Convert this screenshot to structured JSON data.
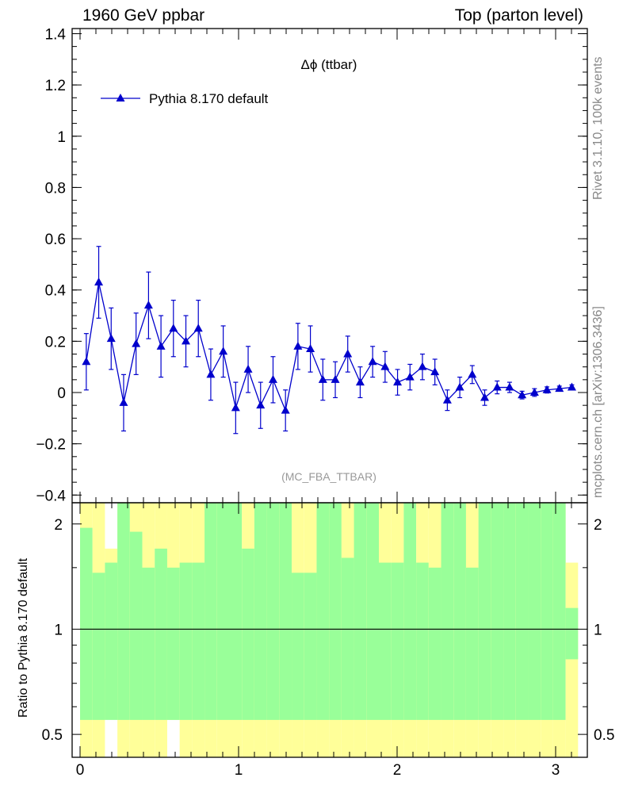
{
  "header": {
    "left": "1960 GeV ppbar",
    "right": "Top (parton level)"
  },
  "side_labels": {
    "rivet": "Rivet 3.1.10,  100k events",
    "mcplots": "mcplots.cern.ch [arXiv:1306.3436]"
  },
  "ratio_ylabel": "Ratio to Pythia 8.170 default",
  "colors": {
    "series": "#0000cc",
    "band_inner": "#99ff99",
    "band_outer": "#ffff99",
    "frame": "#000000",
    "watermark": "#999999"
  },
  "chart_data": [
    {
      "type": "line",
      "title": "Δϕ (ttbar)",
      "watermark": "(MC_FBA_TTBAR)",
      "legend_placement": "top-left",
      "xlim": [
        -0.05,
        3.2
      ],
      "ylim": [
        -0.43,
        1.42
      ],
      "yticks": [
        -0.4,
        -0.2,
        0,
        0.2,
        0.4,
        0.6,
        0.8,
        1,
        1.2,
        1.4
      ],
      "ytick_labels": [
        "−0.4",
        "−0.2",
        "0",
        "0.2",
        "0.4",
        "0.6",
        "0.8",
        "1",
        "1.2",
        "1.4"
      ],
      "series": [
        {
          "name": "Pythia 8.170 default",
          "marker": "triangle-up",
          "x": [
            0.0393,
            0.1178,
            0.1963,
            0.2749,
            0.3534,
            0.432,
            0.5105,
            0.589,
            0.6676,
            0.7461,
            0.8247,
            0.9032,
            0.9817,
            1.0603,
            1.1388,
            1.2174,
            1.2959,
            1.3744,
            1.453,
            1.5315,
            1.6101,
            1.6886,
            1.7671,
            1.8457,
            1.9242,
            2.0028,
            2.0813,
            2.1598,
            2.2384,
            2.3169,
            2.3955,
            2.474,
            2.5525,
            2.6311,
            2.7096,
            2.7882,
            2.8667,
            2.9452,
            3.0238,
            3.1023
          ],
          "y": [
            0.12,
            0.43,
            0.21,
            -0.04,
            0.19,
            0.34,
            0.18,
            0.25,
            0.2,
            0.25,
            0.07,
            0.16,
            -0.06,
            0.09,
            -0.05,
            0.05,
            -0.07,
            0.18,
            0.17,
            0.05,
            0.05,
            0.15,
            0.04,
            0.12,
            0.1,
            0.04,
            0.06,
            0.1,
            0.08,
            -0.03,
            0.02,
            0.07,
            -0.02,
            0.02,
            0.02,
            -0.01,
            0.0,
            0.01,
            0.015,
            0.02
          ],
          "yerr": [
            0.11,
            0.14,
            0.12,
            0.11,
            0.12,
            0.13,
            0.12,
            0.11,
            0.1,
            0.11,
            0.1,
            0.1,
            0.1,
            0.09,
            0.09,
            0.09,
            0.08,
            0.09,
            0.09,
            0.08,
            0.07,
            0.07,
            0.06,
            0.06,
            0.06,
            0.05,
            0.05,
            0.05,
            0.05,
            0.04,
            0.04,
            0.035,
            0.03,
            0.025,
            0.02,
            0.015,
            0.015,
            0.012,
            0.01,
            0.01
          ]
        }
      ]
    },
    {
      "type": "area",
      "xlim": [
        -0.05,
        3.2
      ],
      "ylim": [
        0.43,
        2.3
      ],
      "yscale": "log",
      "yticks": [
        0.5,
        1,
        2
      ],
      "ytick_labels": [
        "0.5",
        "1",
        "2"
      ],
      "xticks": [
        0,
        1,
        2,
        3
      ],
      "xtick_labels": [
        "0",
        "1",
        "2",
        "3"
      ],
      "reference_line": 1,
      "bin_edges": [
        0.0,
        0.0785,
        0.1571,
        0.2356,
        0.3142,
        0.3927,
        0.4712,
        0.5498,
        0.6283,
        0.7069,
        0.7854,
        0.8639,
        0.9425,
        1.021,
        1.0996,
        1.1781,
        1.2566,
        1.3352,
        1.4137,
        1.4923,
        1.5708,
        1.6493,
        1.7279,
        1.8064,
        1.885,
        1.9635,
        2.042,
        2.1206,
        2.1991,
        2.2777,
        2.3562,
        2.4347,
        2.5133,
        2.5918,
        2.6704,
        2.7489,
        2.8274,
        2.906,
        2.9845,
        3.0631,
        3.1416
      ],
      "inner_low": [
        0.55,
        0.55,
        0.55,
        0.55,
        0.55,
        0.55,
        0.55,
        0.55,
        0.55,
        0.55,
        0.55,
        0.55,
        0.55,
        0.55,
        0.55,
        0.55,
        0.55,
        0.55,
        0.55,
        0.55,
        0.55,
        0.55,
        0.55,
        0.55,
        0.55,
        0.55,
        0.55,
        0.55,
        0.55,
        0.55,
        0.55,
        0.55,
        0.55,
        0.55,
        0.55,
        0.55,
        0.55,
        0.55,
        0.55,
        0.82
      ],
      "inner_high": [
        1.95,
        1.45,
        1.55,
        2.3,
        1.9,
        1.5,
        1.7,
        1.5,
        1.55,
        1.55,
        2.3,
        2.3,
        2.3,
        1.7,
        2.3,
        2.3,
        2.3,
        1.45,
        1.45,
        2.3,
        2.3,
        1.6,
        2.3,
        2.3,
        1.55,
        1.55,
        2.3,
        1.55,
        1.5,
        2.3,
        2.3,
        1.5,
        2.3,
        2.3,
        2.3,
        2.3,
        2.3,
        2.3,
        2.3,
        1.15
      ],
      "outer_low": [
        0.43,
        0.43,
        0.72,
        0.43,
        0.43,
        0.43,
        0.43,
        0.55,
        0.43,
        0.43,
        0.43,
        0.43,
        0.43,
        0.43,
        0.43,
        0.43,
        0.43,
        0.43,
        0.43,
        0.43,
        0.43,
        0.43,
        0.43,
        0.43,
        0.43,
        0.43,
        0.43,
        0.43,
        0.43,
        0.43,
        0.43,
        0.43,
        0.43,
        0.43,
        0.43,
        0.43,
        0.43,
        0.43,
        0.43,
        0.43
      ],
      "outer_high": [
        2.3,
        2.3,
        1.7,
        2.3,
        2.3,
        2.3,
        2.3,
        2.3,
        2.3,
        2.3,
        2.3,
        2.3,
        2.3,
        2.3,
        2.3,
        2.3,
        2.3,
        2.3,
        2.3,
        2.3,
        2.3,
        2.3,
        2.3,
        2.3,
        2.3,
        2.3,
        2.3,
        2.3,
        2.3,
        2.3,
        2.3,
        2.3,
        2.3,
        2.3,
        2.3,
        2.3,
        2.3,
        2.3,
        2.3,
        1.55
      ]
    }
  ]
}
